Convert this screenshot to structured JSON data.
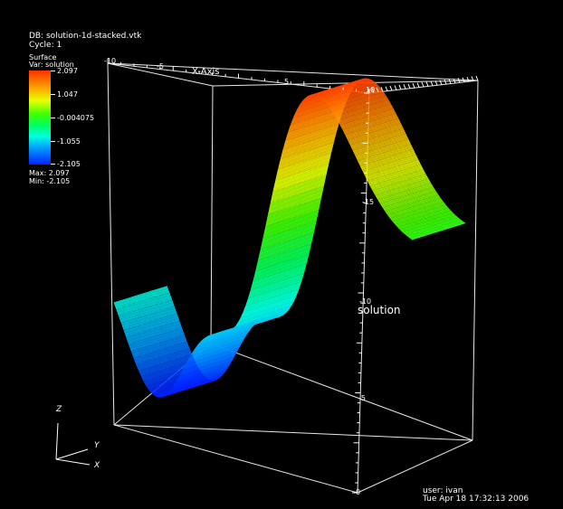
{
  "header": {
    "db_line": "DB: solution-1d-stacked.vtk",
    "cycle_line": "Cycle: 1"
  },
  "legend": {
    "plot_type": "Surface",
    "var_line": "Var: solution",
    "ticks": [
      "2.097",
      "1.047",
      "-0.004075",
      "-1.055",
      "-2.105"
    ],
    "max_line": "Max: 2.097",
    "min_line": "Min: -2.105",
    "colors": [
      "#ff3000",
      "#ffa000",
      "#e8ff00",
      "#40ff00",
      "#00ff60",
      "#00ffe0",
      "#00a0ff",
      "#0020ff"
    ]
  },
  "axes": {
    "x_title": "X-Axis",
    "z_title": "solution",
    "x_ticks": [
      "-10",
      "-5",
      "5",
      "10"
    ],
    "z_ticks": [
      "-15",
      "-10",
      "-5",
      "0"
    ]
  },
  "triad": {
    "z": "Z",
    "y": "Y",
    "x": "X"
  },
  "footer": {
    "user_line": "user: ivan",
    "date_line": "Tue Apr 18 17:32:13 2006"
  }
}
